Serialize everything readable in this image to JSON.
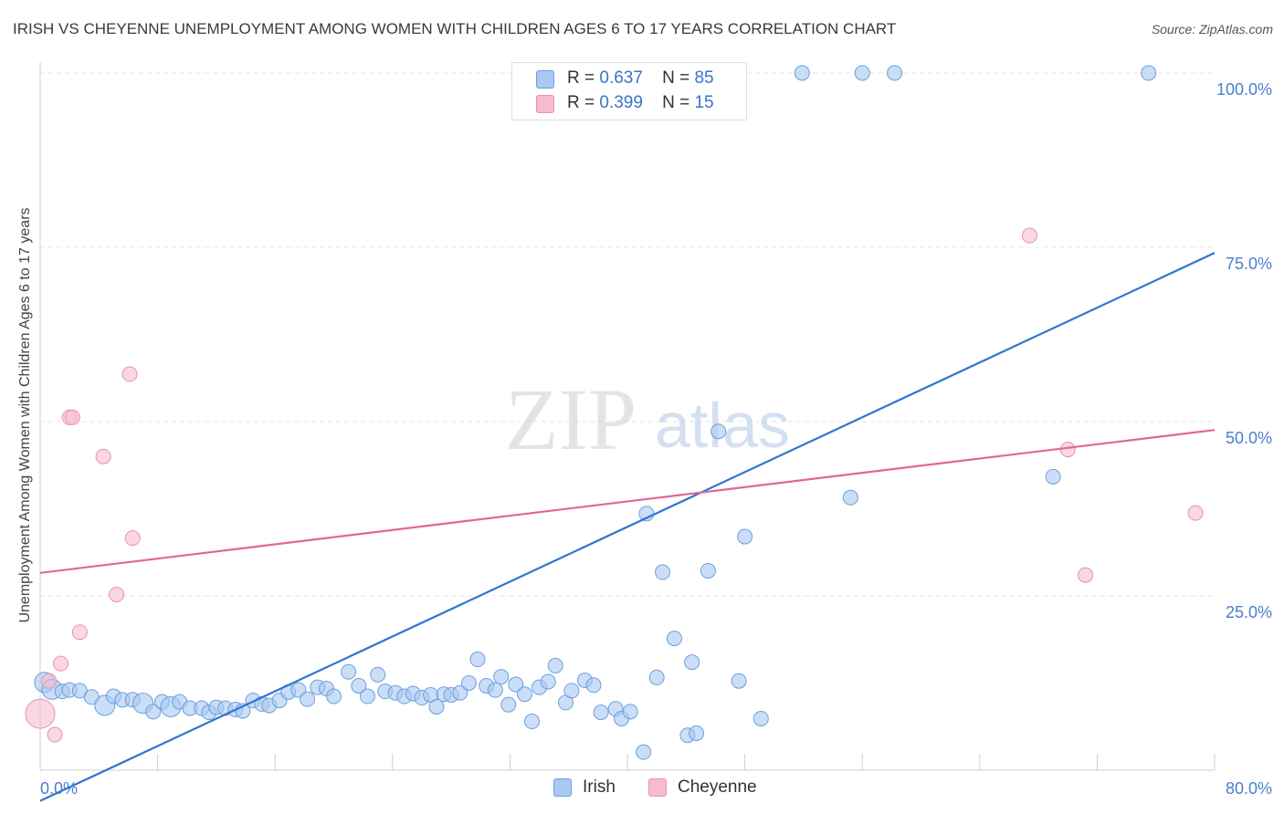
{
  "header": {
    "title": "IRISH VS CHEYENNE UNEMPLOYMENT AMONG WOMEN WITH CHILDREN AGES 6 TO 17 YEARS CORRELATION CHART",
    "source": "Source: ZipAtlas.com"
  },
  "watermark": {
    "zip": "ZIP",
    "atlas": "atlas"
  },
  "legend_top": {
    "rows": [
      {
        "r_label": "R =",
        "r_value": "0.637",
        "n_label": "N =",
        "n_value": "85"
      },
      {
        "r_label": "R =",
        "r_value": "0.399",
        "n_label": "N =",
        "n_value": "15"
      }
    ]
  },
  "legend_bottom": {
    "items": [
      "Irish",
      "Cheyenne"
    ]
  },
  "chart_data": {
    "type": "scatter",
    "title": "IRISH VS CHEYENNE UNEMPLOYMENT AMONG WOMEN WITH CHILDREN AGES 6 TO 17 YEARS CORRELATION CHART",
    "xlabel": "",
    "ylabel": "Unemployment Among Women with Children Ages 6 to 17 years",
    "xlim": [
      0,
      80
    ],
    "ylim": [
      0,
      100
    ],
    "x_tick_labels": {
      "min": "0.0%",
      "max": "80.0%"
    },
    "y_ticks": [
      {
        "value": 100,
        "label": "100.0%"
      },
      {
        "value": 75,
        "label": "75.0%"
      },
      {
        "value": 50,
        "label": "50.0%"
      },
      {
        "value": 25,
        "label": "25.0%"
      }
    ],
    "grid": true,
    "legend_position": "top-center",
    "colors": {
      "irish_fill": "#a9c8f2",
      "irish_stroke": "#6c9fdd",
      "irish_line": "#2f76d2",
      "cheyenne_fill": "#f6bccd",
      "cheyenne_stroke": "#e991ad",
      "cheyenne_line": "#e0679a",
      "grid": "#e6e6e6",
      "axis": "#cfcfcf",
      "tick_text": "#4a7fcc"
    },
    "series": [
      {
        "name": "Irish",
        "r": 0.637,
        "n": 85,
        "trend": {
          "x": [
            0,
            80
          ],
          "y": [
            -4.4,
            74.2
          ]
        },
        "points": [
          [
            0.3,
            12.6,
            2
          ],
          [
            0.8,
            11.6,
            2
          ],
          [
            1.5,
            11.3,
            1
          ],
          [
            2.0,
            11.5,
            1
          ],
          [
            2.7,
            11.4,
            1
          ],
          [
            3.5,
            10.5,
            1
          ],
          [
            4.4,
            9.3,
            2
          ],
          [
            5.0,
            10.6,
            1
          ],
          [
            5.6,
            10.1,
            1
          ],
          [
            6.3,
            10.1,
            1
          ],
          [
            7.0,
            9.6,
            2
          ],
          [
            7.7,
            8.4,
            1
          ],
          [
            8.3,
            9.8,
            1
          ],
          [
            8.9,
            9.1,
            2
          ],
          [
            9.5,
            9.8,
            1
          ],
          [
            10.2,
            8.9,
            1
          ],
          [
            11.0,
            8.9,
            1
          ],
          [
            11.5,
            8.3,
            1
          ],
          [
            12.0,
            9.0,
            1
          ],
          [
            12.6,
            8.9,
            1
          ],
          [
            13.3,
            8.7,
            1
          ],
          [
            13.8,
            8.5,
            1
          ],
          [
            14.5,
            10.0,
            1
          ],
          [
            15.1,
            9.5,
            1
          ],
          [
            15.6,
            9.3,
            1
          ],
          [
            16.3,
            10.0,
            1
          ],
          [
            16.9,
            11.2,
            1
          ],
          [
            17.6,
            11.5,
            1
          ],
          [
            18.2,
            10.2,
            1
          ],
          [
            18.9,
            11.9,
            1
          ],
          [
            19.5,
            11.7,
            1
          ],
          [
            20.0,
            10.6,
            1
          ],
          [
            21.0,
            14.1,
            1
          ],
          [
            21.7,
            12.1,
            1
          ],
          [
            22.3,
            10.6,
            1
          ],
          [
            23.0,
            13.7,
            1
          ],
          [
            23.5,
            11.3,
            1
          ],
          [
            24.2,
            11.1,
            1
          ],
          [
            24.8,
            10.6,
            1
          ],
          [
            25.4,
            11.0,
            1
          ],
          [
            26.0,
            10.4,
            1
          ],
          [
            26.6,
            10.8,
            1
          ],
          [
            27.0,
            9.1,
            1
          ],
          [
            27.5,
            10.9,
            1
          ],
          [
            28.0,
            10.8,
            1
          ],
          [
            28.6,
            11.1,
            1
          ],
          [
            29.2,
            12.5,
            1
          ],
          [
            29.8,
            15.9,
            1
          ],
          [
            30.4,
            12.1,
            1
          ],
          [
            31.0,
            11.5,
            1
          ],
          [
            31.4,
            13.4,
            1
          ],
          [
            31.9,
            9.4,
            1
          ],
          [
            32.4,
            12.3,
            1
          ],
          [
            33.0,
            10.9,
            1
          ],
          [
            33.5,
            7.0,
            1
          ],
          [
            34.0,
            11.9,
            1
          ],
          [
            34.6,
            12.7,
            1
          ],
          [
            35.1,
            15.0,
            1
          ],
          [
            35.8,
            9.7,
            1
          ],
          [
            36.2,
            11.4,
            1
          ],
          [
            37.1,
            12.9,
            1
          ],
          [
            37.7,
            12.2,
            1
          ],
          [
            38.2,
            8.3,
            1
          ],
          [
            39.2,
            8.8,
            1
          ],
          [
            39.6,
            7.4,
            1
          ],
          [
            40.2,
            8.4,
            1
          ],
          [
            41.1,
            2.6,
            1
          ],
          [
            41.3,
            36.8,
            1
          ],
          [
            42.0,
            13.3,
            1
          ],
          [
            42.4,
            28.4,
            1
          ],
          [
            43.2,
            18.9,
            1
          ],
          [
            44.1,
            5.0,
            1
          ],
          [
            44.4,
            15.5,
            1
          ],
          [
            44.7,
            5.3,
            1
          ],
          [
            45.5,
            28.6,
            1
          ],
          [
            46.2,
            48.6,
            1
          ],
          [
            47.6,
            12.8,
            1
          ],
          [
            48.0,
            33.5,
            1
          ],
          [
            49.1,
            7.4,
            1
          ],
          [
            55.2,
            39.1,
            1
          ],
          [
            69.0,
            42.1,
            1
          ],
          [
            51.9,
            100.0,
            1
          ],
          [
            56.0,
            100.0,
            1
          ],
          [
            58.2,
            100.0,
            1
          ],
          [
            75.5,
            100.0,
            1
          ]
        ]
      },
      {
        "name": "Cheyenne",
        "r": 0.399,
        "n": 15,
        "trend": {
          "x": [
            0,
            80
          ],
          "y": [
            28.3,
            48.8
          ]
        },
        "points": [
          [
            0.0,
            8.1,
            3
          ],
          [
            0.6,
            12.8,
            1
          ],
          [
            1.0,
            5.1,
            1
          ],
          [
            1.4,
            15.3,
            1
          ],
          [
            2.0,
            50.6,
            1
          ],
          [
            2.2,
            50.6,
            1
          ],
          [
            2.7,
            19.8,
            1
          ],
          [
            4.3,
            45.0,
            1
          ],
          [
            5.2,
            25.2,
            1
          ],
          [
            6.1,
            56.8,
            1
          ],
          [
            6.3,
            33.3,
            1
          ],
          [
            70.0,
            46.0,
            1
          ],
          [
            71.2,
            28.0,
            1
          ],
          [
            78.7,
            36.9,
            1
          ],
          [
            67.4,
            76.7,
            1
          ]
        ]
      }
    ]
  }
}
